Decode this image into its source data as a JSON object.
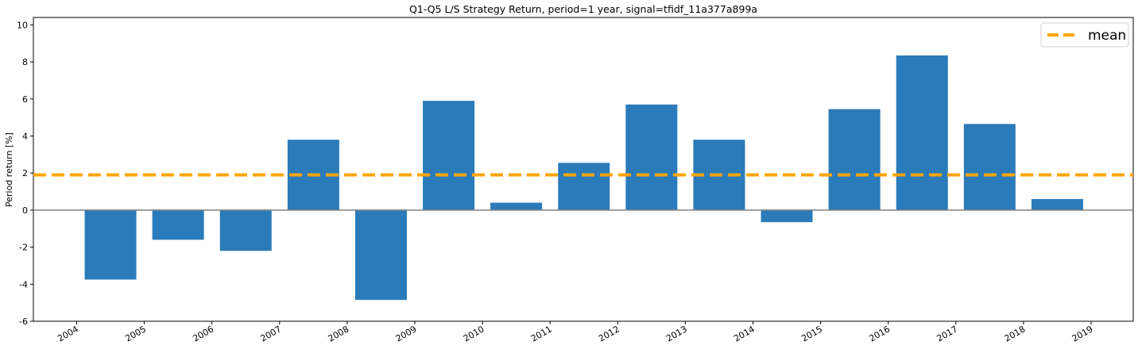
{
  "chart_data": {
    "type": "bar",
    "title": "Q1-Q5 L/S Strategy Return, period=1 year, signal=tfidf_11a377a899a",
    "ylabel": "Period return [%]",
    "xlabel": "",
    "categories": [
      "2004",
      "2005",
      "2006",
      "2007",
      "2008",
      "2009",
      "2010",
      "2011",
      "2012",
      "2013",
      "2014",
      "2015",
      "2016",
      "2017",
      "2018"
    ],
    "values": [
      -3.75,
      -1.6,
      -2.2,
      3.8,
      -4.85,
      5.9,
      0.4,
      2.55,
      5.7,
      3.8,
      -0.65,
      5.45,
      8.35,
      4.65,
      0.6
    ],
    "x_tick_labels": [
      "2004",
      "2005",
      "2006",
      "2007",
      "2008",
      "2009",
      "2010",
      "2011",
      "2012",
      "2013",
      "2014",
      "2015",
      "2016",
      "2017",
      "2018",
      "2019"
    ],
    "y_ticks": [
      -6,
      -4,
      -2,
      0,
      2,
      4,
      6,
      8,
      10
    ],
    "ylim": [
      -6,
      10.4
    ],
    "mean": 1.9,
    "legend": {
      "entries": [
        "mean"
      ],
      "placement": "top-right"
    },
    "grid": false,
    "colors": {
      "bar": "#2b7bba",
      "mean_line": "#ffa500",
      "zero_line": "#808080"
    }
  }
}
